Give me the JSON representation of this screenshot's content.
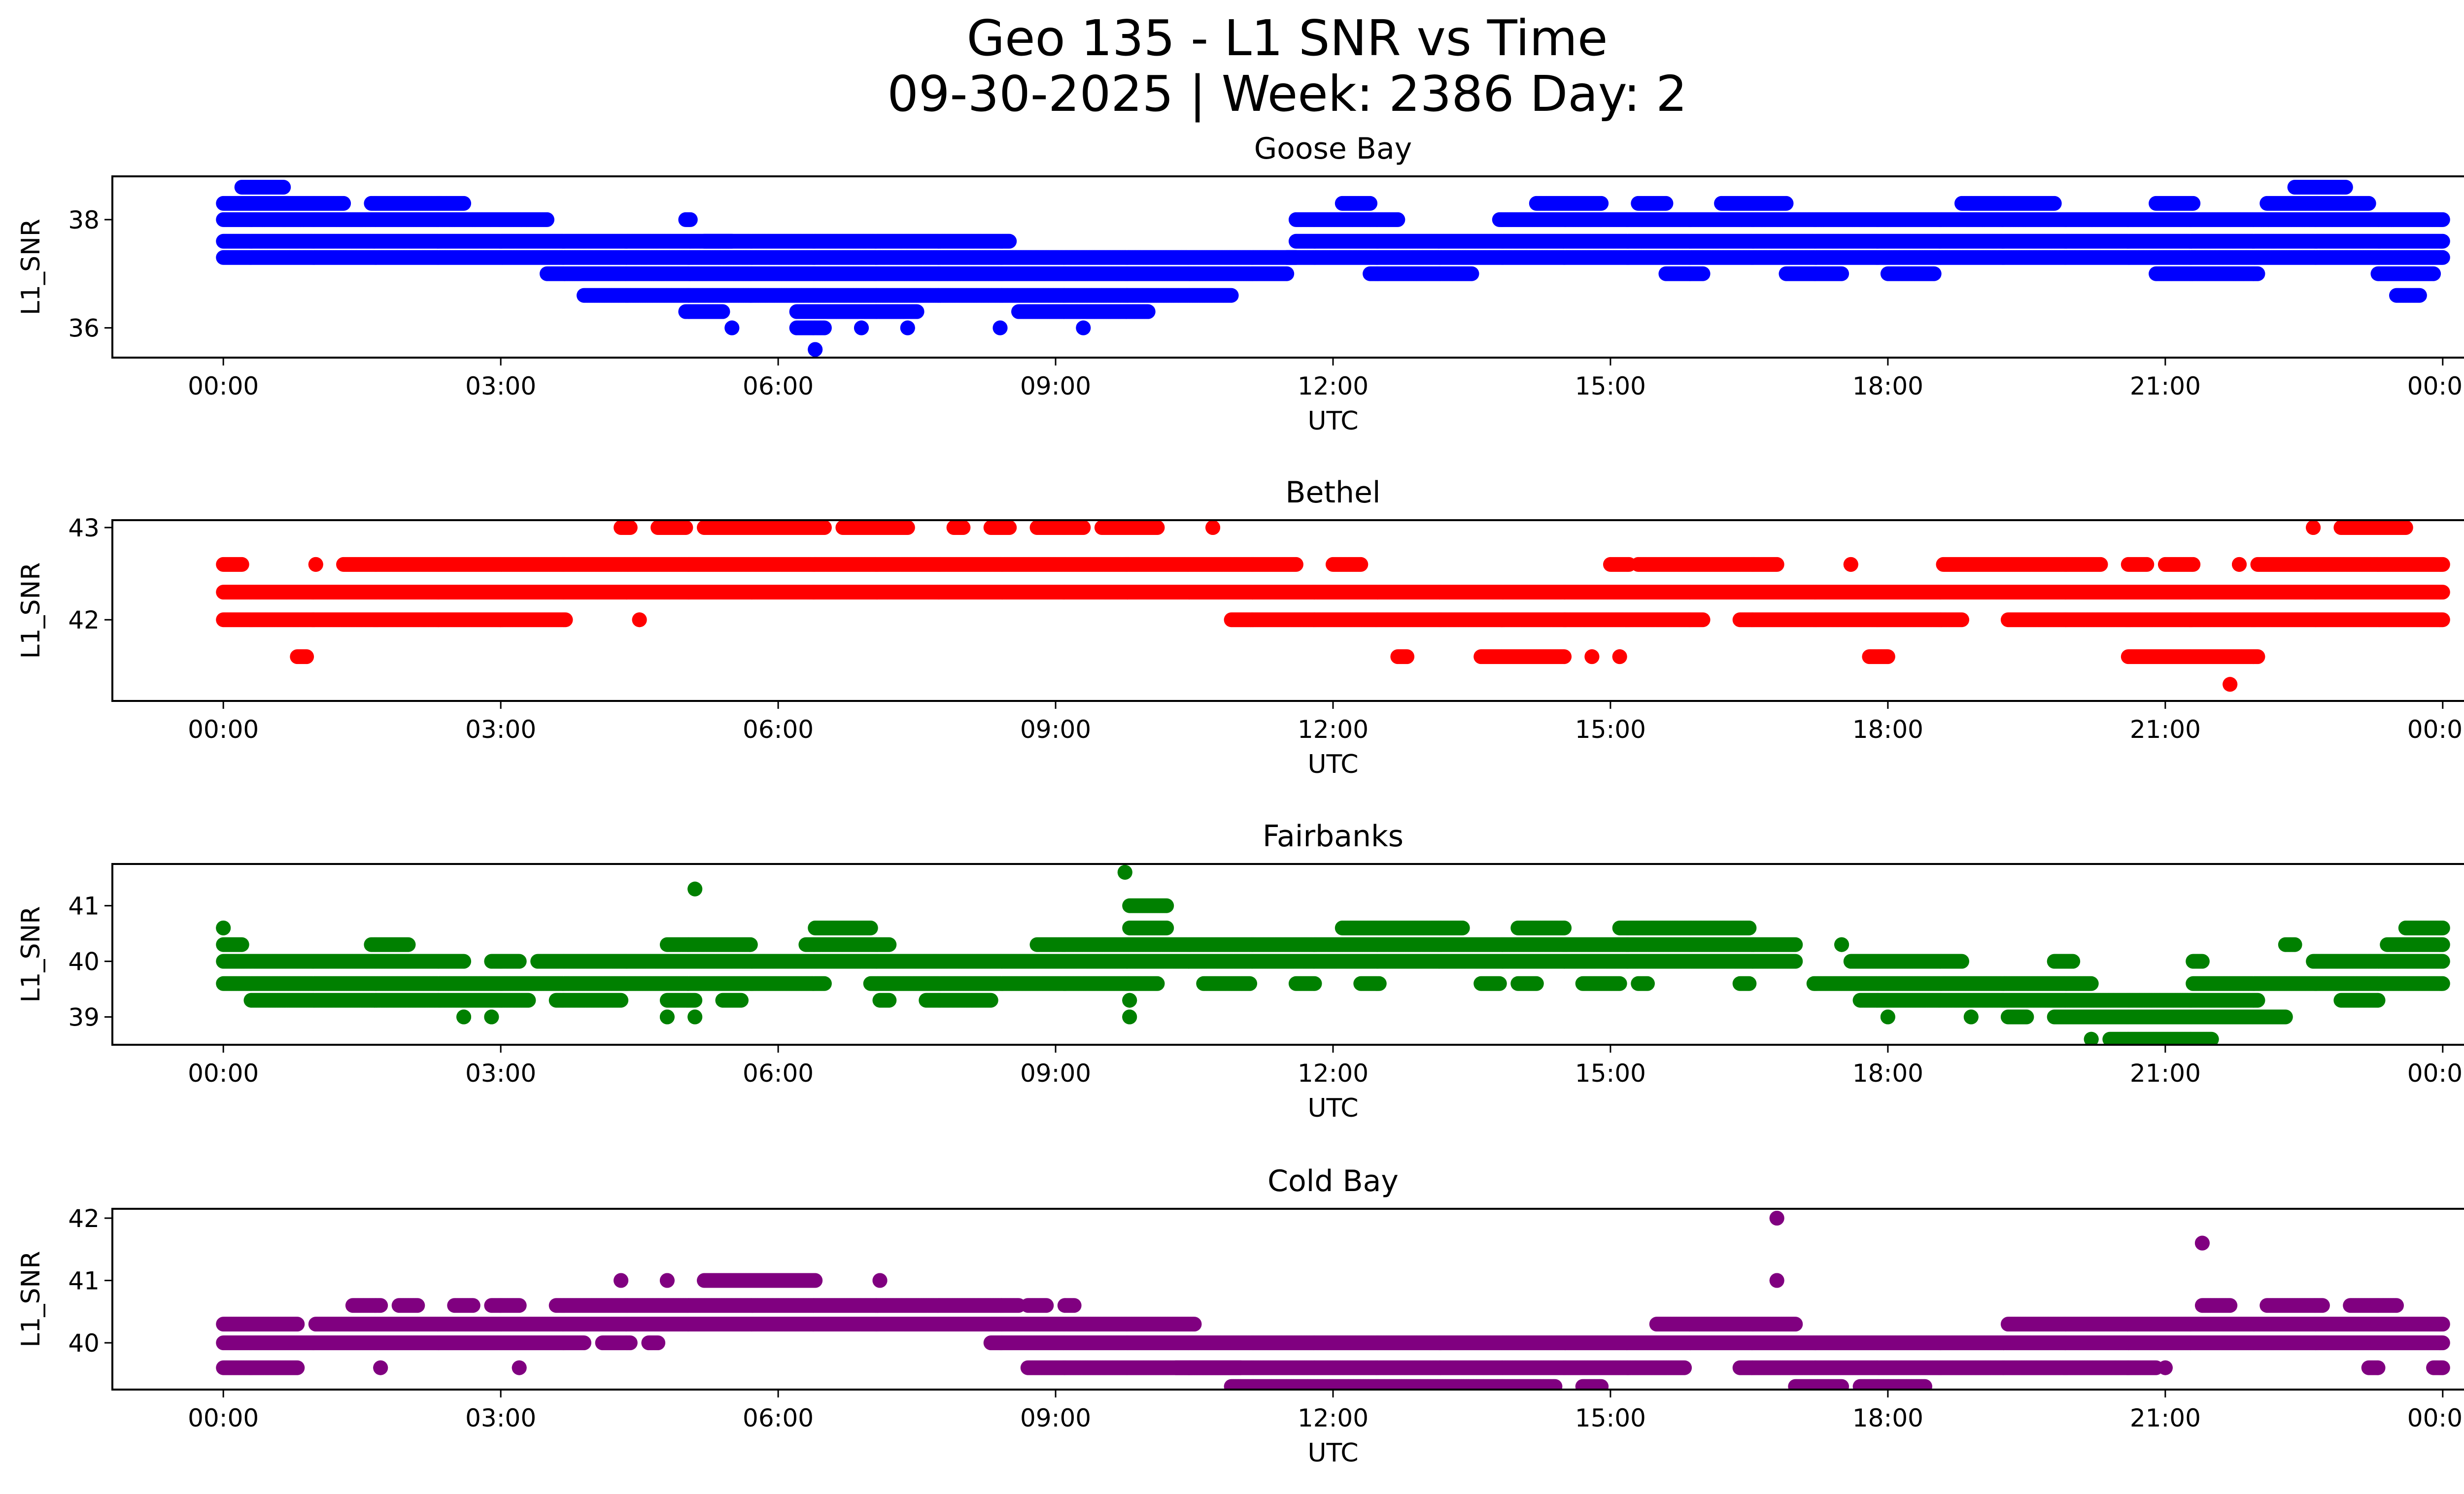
{
  "figure": {
    "title_line1": "Geo 135 - L1 SNR vs Time",
    "title_line2": "09-30-2025 | Week: 2386 Day: 2"
  },
  "chart_data": [
    {
      "type": "scatter",
      "title": "Goose Bay",
      "xlabel": "UTC",
      "ylabel": "L1_SNR",
      "color": "#0000ff",
      "x_ticks": [
        "00:00",
        "03:00",
        "06:00",
        "09:00",
        "12:00",
        "15:00",
        "18:00",
        "21:00",
        "00:00"
      ],
      "xlim_hours": [
        -1.2,
        25.2
      ],
      "ylim": [
        35.45,
        38.8
      ],
      "y_ticks": [
        36,
        38
      ],
      "levels": [
        {
          "y": 38.6,
          "segments": [
            [
              0.2,
              0.65
            ],
            [
              22.4,
              22.95
            ]
          ]
        },
        {
          "y": 38.3,
          "segments": [
            [
              0.0,
              1.3
            ],
            [
              1.6,
              2.6
            ],
            [
              12.1,
              12.4
            ],
            [
              14.2,
              14.9
            ],
            [
              15.3,
              15.6
            ],
            [
              16.2,
              16.9
            ],
            [
              18.8,
              19.8
            ],
            [
              20.9,
              21.3
            ],
            [
              22.1,
              23.2
            ]
          ]
        },
        {
          "y": 38.0,
          "segments": [
            [
              0.0,
              3.5
            ],
            [
              5.0,
              5.05
            ],
            [
              11.6,
              12.7
            ],
            [
              13.8,
              24.0
            ]
          ]
        },
        {
          "y": 37.6,
          "segments": [
            [
              0.0,
              5.5
            ],
            [
              5.2,
              8.5
            ],
            [
              11.6,
              24.0
            ]
          ]
        },
        {
          "y": 37.3,
          "segments": [
            [
              0.0,
              11.6
            ],
            [
              11.5,
              24.0
            ]
          ]
        },
        {
          "y": 37.0,
          "segments": [
            [
              3.5,
              11.5
            ],
            [
              12.4,
              13.5
            ],
            [
              15.6,
              16.0
            ],
            [
              16.9,
              17.5
            ],
            [
              18.0,
              18.5
            ],
            [
              20.9,
              22.0
            ],
            [
              23.3,
              23.9
            ]
          ]
        },
        {
          "y": 36.6,
          "segments": [
            [
              3.9,
              10.9
            ],
            [
              23.5,
              23.75
            ]
          ]
        },
        {
          "y": 36.3,
          "segments": [
            [
              5.0,
              5.4
            ],
            [
              6.2,
              7.5
            ],
            [
              8.6,
              10.0
            ]
          ]
        },
        {
          "y": 36.0,
          "segments": [
            [
              5.5,
              5.5
            ],
            [
              6.2,
              6.5
            ],
            [
              6.9,
              6.9
            ],
            [
              7.4,
              7.4
            ],
            [
              8.4,
              8.4
            ],
            [
              9.3,
              9.3
            ]
          ]
        },
        {
          "y": 35.6,
          "segments": [
            [
              6.4,
              6.4
            ]
          ]
        }
      ]
    },
    {
      "type": "scatter",
      "title": "Bethel",
      "xlabel": "UTC",
      "ylabel": "L1_SNR",
      "color": "#ff0000",
      "x_ticks": [
        "00:00",
        "03:00",
        "06:00",
        "09:00",
        "12:00",
        "15:00",
        "18:00",
        "21:00",
        "00:00"
      ],
      "xlim_hours": [
        -1.2,
        25.2
      ],
      "ylim": [
        41.12,
        43.08
      ],
      "y_ticks": [
        42,
        43
      ],
      "levels": [
        {
          "y": 43.0,
          "segments": [
            [
              4.3,
              4.4
            ],
            [
              4.7,
              5.0
            ],
            [
              5.2,
              6.5
            ],
            [
              6.7,
              7.4
            ],
            [
              7.9,
              8.0
            ],
            [
              8.3,
              8.5
            ],
            [
              8.8,
              9.3
            ],
            [
              9.5,
              10.1
            ],
            [
              10.7,
              10.7
            ],
            [
              22.6,
              22.6
            ],
            [
              22.9,
              23.6
            ]
          ]
        },
        {
          "y": 42.6,
          "segments": [
            [
              0.0,
              0.2
            ],
            [
              1.0,
              1.0
            ],
            [
              1.3,
              11.6
            ],
            [
              12.0,
              12.3
            ],
            [
              15.0,
              15.2
            ],
            [
              15.3,
              16.8
            ],
            [
              17.6,
              17.6
            ],
            [
              18.6,
              20.3
            ],
            [
              20.6,
              20.8
            ],
            [
              21.0,
              21.3
            ],
            [
              21.8,
              21.8
            ],
            [
              22.0,
              24.0
            ]
          ]
        },
        {
          "y": 42.3,
          "segments": [
            [
              0.0,
              24.0
            ]
          ]
        },
        {
          "y": 42.0,
          "segments": [
            [
              0.0,
              3.7
            ],
            [
              4.5,
              4.5
            ],
            [
              10.9,
              16.0
            ],
            [
              16.4,
              18.8
            ],
            [
              19.3,
              24.0
            ]
          ]
        },
        {
          "y": 41.6,
          "segments": [
            [
              0.8,
              0.9
            ],
            [
              12.7,
              12.8
            ],
            [
              13.6,
              14.5
            ],
            [
              14.8,
              14.8
            ],
            [
              15.1,
              15.1
            ],
            [
              17.8,
              18.0
            ],
            [
              20.6,
              22.0
            ]
          ]
        },
        {
          "y": 41.3,
          "segments": [
            [
              21.7,
              21.7
            ]
          ]
        }
      ]
    },
    {
      "type": "scatter",
      "title": "Fairbanks",
      "xlabel": "UTC",
      "ylabel": "L1_SNR",
      "color": "#008000",
      "x_ticks": [
        "00:00",
        "03:00",
        "06:00",
        "09:00",
        "12:00",
        "15:00",
        "18:00",
        "21:00",
        "00:00"
      ],
      "xlim_hours": [
        -1.2,
        25.2
      ],
      "ylim": [
        38.5,
        41.75
      ],
      "y_ticks": [
        39,
        40,
        41
      ],
      "levels": [
        {
          "y": 41.6,
          "segments": [
            [
              9.75,
              9.75
            ]
          ]
        },
        {
          "y": 41.3,
          "segments": [
            [
              5.1,
              5.1
            ]
          ]
        },
        {
          "y": 41.0,
          "segments": [
            [
              9.8,
              10.2
            ]
          ]
        },
        {
          "y": 40.6,
          "segments": [
            [
              0.0,
              0.0
            ],
            [
              6.4,
              7.0
            ],
            [
              9.8,
              10.2
            ],
            [
              12.1,
              13.4
            ],
            [
              14.0,
              14.5
            ],
            [
              15.1,
              16.5
            ],
            [
              23.6,
              24.0
            ]
          ]
        },
        {
          "y": 40.3,
          "segments": [
            [
              0.0,
              0.2
            ],
            [
              1.6,
              2.0
            ],
            [
              4.8,
              5.7
            ],
            [
              6.3,
              7.2
            ],
            [
              8.8,
              17.0
            ],
            [
              17.5,
              17.5
            ],
            [
              22.3,
              22.4
            ],
            [
              23.4,
              24.0
            ]
          ]
        },
        {
          "y": 40.0,
          "segments": [
            [
              0.0,
              2.6
            ],
            [
              2.9,
              3.2
            ],
            [
              3.4,
              17.0
            ],
            [
              17.6,
              18.8
            ],
            [
              19.8,
              20.0
            ],
            [
              21.3,
              21.4
            ],
            [
              22.6,
              24.0
            ]
          ]
        },
        {
          "y": 39.6,
          "segments": [
            [
              0.0,
              6.5
            ],
            [
              7.0,
              10.1
            ],
            [
              10.6,
              11.1
            ],
            [
              11.6,
              11.8
            ],
            [
              12.3,
              12.5
            ],
            [
              13.6,
              13.8
            ],
            [
              14.0,
              14.2
            ],
            [
              14.7,
              15.1
            ],
            [
              15.3,
              15.4
            ],
            [
              16.4,
              16.5
            ],
            [
              17.2,
              20.2
            ],
            [
              21.3,
              24.0
            ]
          ]
        },
        {
          "y": 39.3,
          "segments": [
            [
              0.3,
              3.3
            ],
            [
              3.6,
              4.3
            ],
            [
              4.8,
              5.1
            ],
            [
              5.4,
              5.6
            ],
            [
              7.1,
              7.2
            ],
            [
              7.6,
              8.3
            ],
            [
              9.8,
              9.8
            ],
            [
              17.7,
              22.0
            ],
            [
              22.9,
              23.3
            ]
          ]
        },
        {
          "y": 39.0,
          "segments": [
            [
              2.6,
              2.6
            ],
            [
              2.9,
              2.9
            ],
            [
              4.8,
              4.8
            ],
            [
              5.1,
              5.1
            ],
            [
              9.8,
              9.8
            ],
            [
              18.0,
              18.0
            ],
            [
              18.9,
              18.9
            ],
            [
              19.3,
              19.5
            ],
            [
              19.8,
              22.3
            ]
          ]
        },
        {
          "y": 38.6,
          "segments": [
            [
              20.2,
              20.2
            ],
            [
              20.4,
              21.5
            ]
          ]
        }
      ]
    },
    {
      "type": "scatter",
      "title": "Cold Bay",
      "xlabel": "UTC",
      "ylabel": "L1_SNR",
      "color": "#800080",
      "x_ticks": [
        "00:00",
        "03:00",
        "06:00",
        "09:00",
        "12:00",
        "15:00",
        "18:00",
        "21:00",
        "00:00"
      ],
      "xlim_hours": [
        -1.2,
        25.2
      ],
      "ylim": [
        39.25,
        42.15
      ],
      "y_ticks": [
        40,
        41,
        42
      ],
      "levels": [
        {
          "y": 42.0,
          "segments": [
            [
              16.8,
              16.8
            ]
          ]
        },
        {
          "y": 41.6,
          "segments": [
            [
              21.4,
              21.4
            ]
          ]
        },
        {
          "y": 41.0,
          "segments": [
            [
              4.3,
              4.3
            ],
            [
              4.8,
              4.8
            ],
            [
              5.2,
              6.4
            ],
            [
              7.1,
              7.1
            ],
            [
              16.8,
              16.8
            ]
          ]
        },
        {
          "y": 40.6,
          "segments": [
            [
              1.4,
              1.7
            ],
            [
              1.9,
              2.1
            ],
            [
              2.5,
              2.7
            ],
            [
              2.9,
              3.2
            ],
            [
              3.6,
              8.6
            ],
            [
              8.7,
              8.9
            ],
            [
              9.1,
              9.2
            ],
            [
              21.4,
              21.7
            ],
            [
              22.1,
              22.7
            ],
            [
              23.0,
              23.5
            ]
          ]
        },
        {
          "y": 40.3,
          "segments": [
            [
              0.0,
              0.8
            ],
            [
              1.0,
              10.5
            ],
            [
              15.5,
              17.0
            ],
            [
              19.3,
              24.0
            ]
          ]
        },
        {
          "y": 40.0,
          "segments": [
            [
              0.0,
              3.9
            ],
            [
              4.1,
              4.4
            ],
            [
              4.6,
              4.7
            ],
            [
              8.3,
              24.0
            ]
          ]
        },
        {
          "y": 39.6,
          "segments": [
            [
              0.0,
              0.8
            ],
            [
              1.7,
              1.7
            ],
            [
              3.2,
              3.2
            ],
            [
              8.7,
              11.0
            ],
            [
              10.3,
              15.8
            ],
            [
              16.4,
              20.9
            ],
            [
              21.0,
              21.0
            ],
            [
              23.2,
              23.3
            ],
            [
              23.9,
              24.0
            ]
          ]
        },
        {
          "y": 39.3,
          "segments": [
            [
              10.9,
              14.4
            ],
            [
              14.7,
              14.9
            ],
            [
              17.0,
              17.5
            ],
            [
              17.7,
              18.4
            ]
          ]
        }
      ]
    }
  ]
}
